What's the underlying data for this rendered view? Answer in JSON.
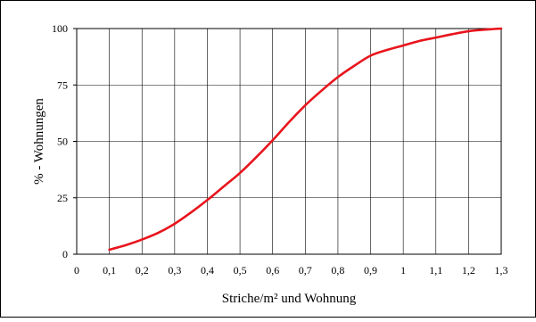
{
  "chart_data": {
    "type": "line",
    "title": "",
    "xlabel": "Striche/m² und Wohnung",
    "ylabel": "% - Wohnungen",
    "xlim": [
      0,
      1.3
    ],
    "ylim": [
      0,
      100
    ],
    "x_ticks": [
      "0",
      "0,1",
      "0,2",
      "0,3",
      "0,4",
      "0,5",
      "0,6",
      "0,7",
      "0,8",
      "0,9",
      "1",
      "1,1",
      "1,2",
      "1,3"
    ],
    "y_ticks": [
      "0",
      "25",
      "50",
      "75",
      "100"
    ],
    "grid": true,
    "legend": "none",
    "series": [
      {
        "color": "#e8141c",
        "x": [
          0.1,
          0.15,
          0.2,
          0.25,
          0.3,
          0.35,
          0.4,
          0.45,
          0.5,
          0.55,
          0.6,
          0.65,
          0.7,
          0.75,
          0.8,
          0.85,
          0.9,
          0.95,
          1.0,
          1.05,
          1.1,
          1.15,
          1.2,
          1.25,
          1.3
        ],
        "y": [
          2,
          4,
          6.5,
          9.5,
          13.5,
          18.5,
          24,
          30,
          36,
          43,
          50.5,
          58.5,
          66,
          72.5,
          78.5,
          83.5,
          88,
          90.5,
          92.5,
          94.5,
          96,
          97.5,
          98.8,
          99.5,
          100
        ]
      }
    ]
  }
}
